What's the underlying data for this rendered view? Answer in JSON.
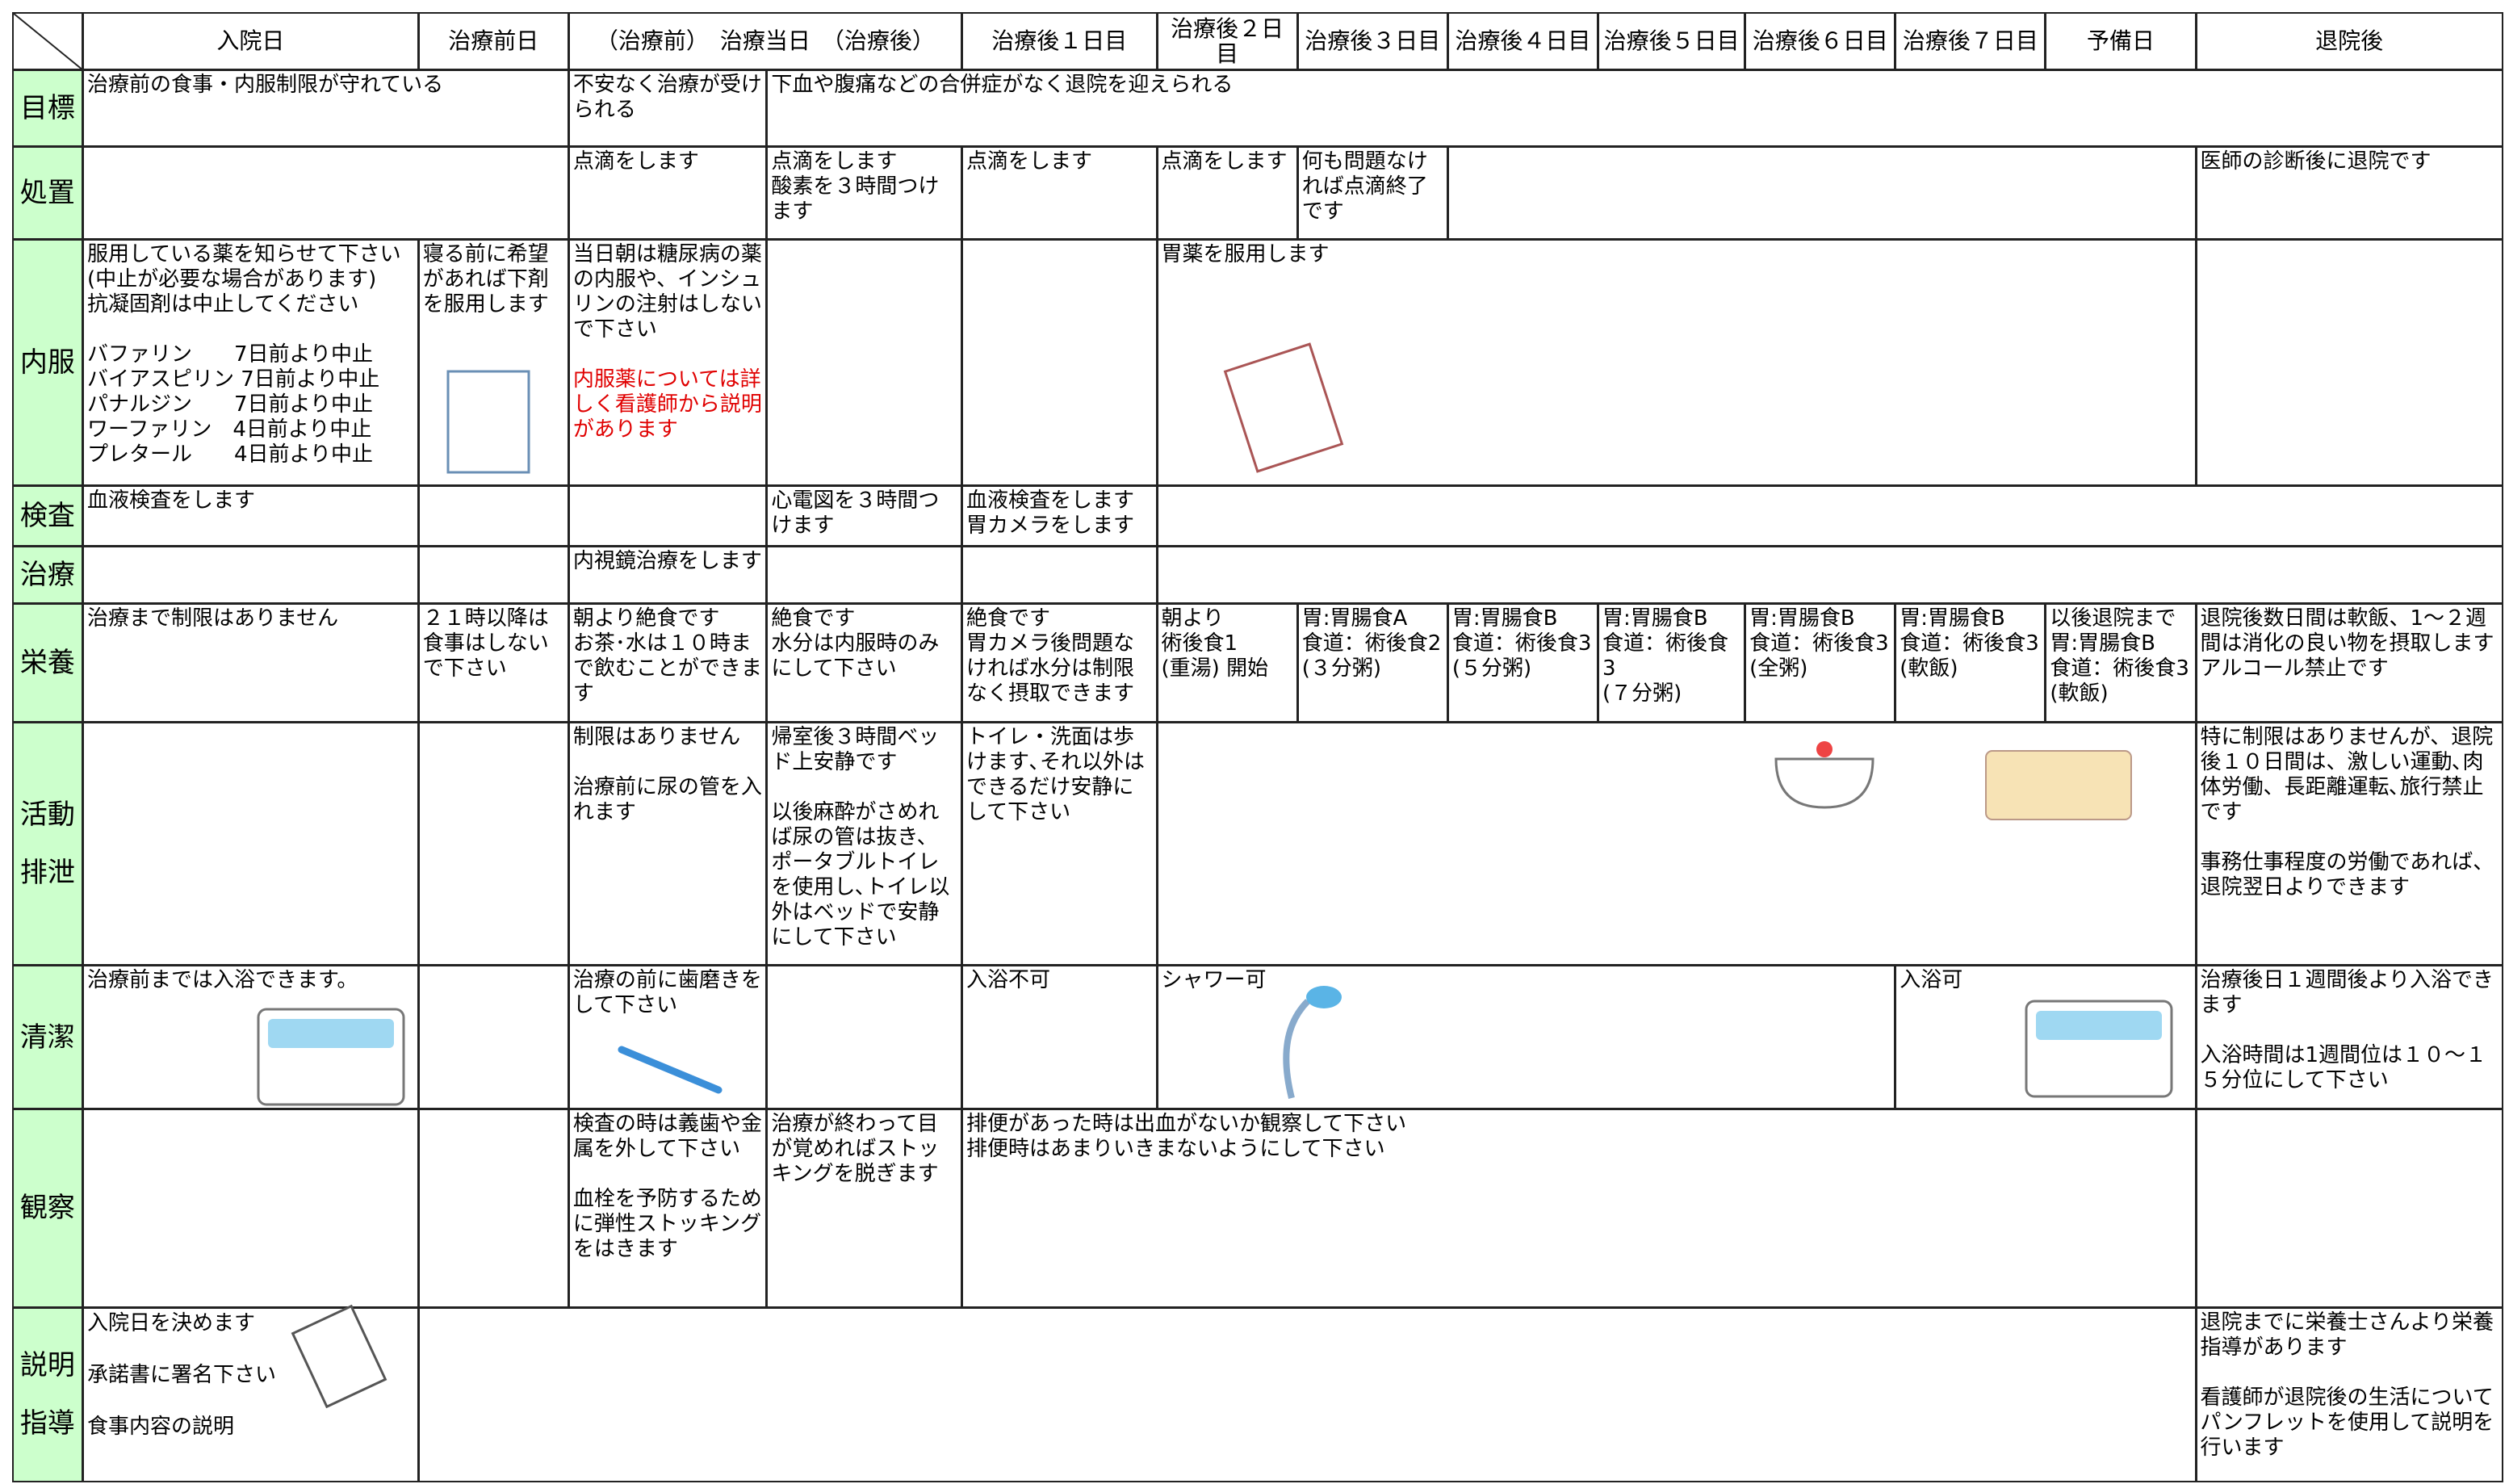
{
  "header": {
    "cells": [
      "入院日",
      "治療前日",
      "（治療前）　治療当日　（治療後）",
      "治療後１日目",
      "治療後２日目",
      "治療後３日目",
      "治療後４日目",
      "治療後５日目",
      "治療後６日目",
      "治療後７日目",
      "予備日",
      "退院後"
    ]
  },
  "rows": [
    {
      "label": "目標",
      "cells": [
        "治療前の食事・内服制限が守れている",
        "不安なく治療が受けられる",
        "下血や腹痛などの合併症がなく退院を迎えられる"
      ]
    },
    {
      "label": "処置",
      "cells": [
        "点滴をします",
        "点滴をします\n酸素を３時間つけます",
        "点滴をします",
        "点滴をします",
        "何も問題なければ点滴終了です",
        "医師の診断後に退院です"
      ]
    },
    {
      "label": "内服",
      "cells": [
        "服用している薬を知らせて下さい\n(中止が必要な場合があります)\n抗凝固剤は中止してください\n\nバファリン　　7日前より中止\nバイアスピリン 7日前より中止\nパナルジン　　7日前より中止\nワーファリン　4日前より中止\nプレタール　　4日前より中止",
        "寝る前に希望があれば下剤を服用します",
        "当日朝は糖尿病の薬の内服や、インシュリンの注射はしないで下さい",
        "胃薬を服用します"
      ],
      "note": "内服薬については詳しく看護師から説明があります"
    },
    {
      "label": "検査",
      "cells": [
        "血液検査をします",
        "心電図を３時間つけます",
        "血液検査をします\n胃カメラをします"
      ]
    },
    {
      "label": "治療",
      "cells": [
        "内視鏡治療をします"
      ]
    },
    {
      "label": "栄養",
      "cells": [
        "治療まで制限はありません",
        "２１時以降は食事はしないで下さい",
        "朝より絶食です\nお茶･水は１０時まで飲むことができます",
        "絶食です\n水分は内服時のみにして下さい",
        "絶食です\n胃カメラ後問題なければ水分は制限なく摂取できます",
        "朝より\n術後食1\n(重湯) 開始",
        "胃:胃腸食A\n食道：術後食2\n(３分粥)",
        "胃:胃腸食B\n食道：術後食3\n(５分粥)",
        "胃:胃腸食B\n食道：術後食3\n(７分粥)",
        "胃:胃腸食B\n食道：術後食3\n(全粥)",
        "胃:胃腸食B\n食道：術後食3\n(軟飯)",
        "以後退院まで\n胃:胃腸食B\n食道：術後食3\n(軟飯)",
        "退院後数日間は軟飯、1～２週間は消化の良い物を摂取します\nアルコール禁止です"
      ]
    },
    {
      "label": "活動\n\n排泄",
      "cells": [
        "制限はありません\n\n治療前に尿の管を入れます",
        "帰室後３時間ベッド上安静です\n\n以後麻酔がさめれば尿の管は抜き、ポータブルトイレを使用し､トイレ以外はベッドで安静にして下さい",
        "トイレ・洗面は歩けます､それ以外はできるだけ安静にして下さい",
        "特に制限はありませんが、退院後１０日間は、激しい運動､肉体労働、長距離運転､旅行禁止です\n\n事務仕事程度の労働であれば、退院翌日よりできます"
      ]
    },
    {
      "label": "清潔",
      "cells": [
        "治療前までは入浴できます。",
        "治療の前に歯磨きをして下さい",
        "入浴不可",
        "シャワー可",
        "入浴可",
        "治療後日１週間後より入浴できます\n\n入浴時間は1週間位は１０～１５分位にして下さい"
      ]
    },
    {
      "label": "観察",
      "cells": [
        "検査の時は義歯や金属を外して下さい\n\n血栓を予防するために弾性ストッキングをはきます",
        "治療が終わって目が覚めればストッキングを脱ぎます",
        "排便があった時は出血がないか観察して下さい\n排便時はあまりいきまないようにして下さい"
      ]
    },
    {
      "label": "説明\n\n指導",
      "cells": [
        "入院日を決めます\n\n承諾書に署名下さい\n\n食事内容の説明",
        "退院までに栄養士さんより栄養指導があります\n\n看護師が退院後の生活についてパンフレットを使用して説明を行います"
      ]
    }
  ]
}
